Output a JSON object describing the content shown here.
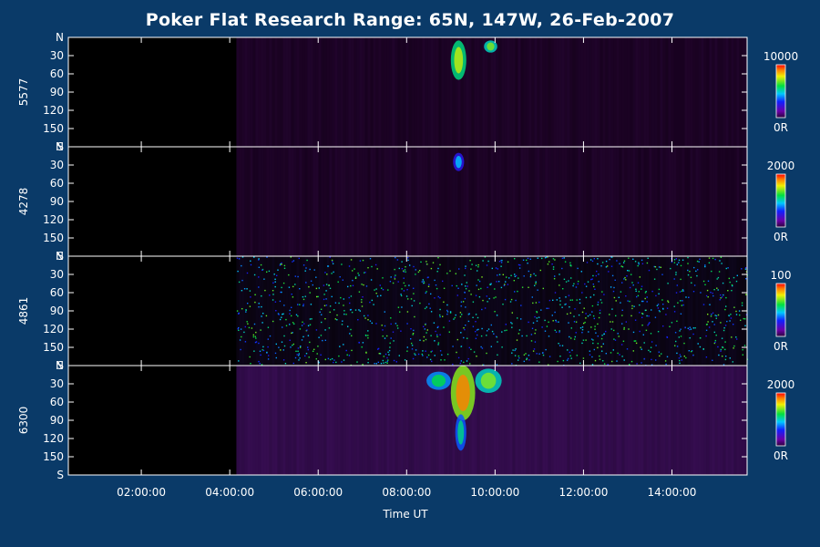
{
  "chart_data": {
    "type": "heatmap",
    "title": "Poker Flat Research Range: 65N, 147W, 26-Feb-2007",
    "xlabel": "Time UT",
    "x_ticks": [
      "02:00:00",
      "04:00:00",
      "06:00:00",
      "08:00:00",
      "10:00:00",
      "12:00:00",
      "14:00:00"
    ],
    "x_tick_hours": [
      2,
      4,
      6,
      8,
      10,
      12,
      14
    ],
    "x_range_hours": [
      0.35,
      15.7
    ],
    "y_ticks": [
      "N",
      "30",
      "60",
      "90",
      "120",
      "150",
      "S"
    ],
    "y_tick_values": [
      0,
      30,
      60,
      90,
      120,
      150,
      180
    ],
    "y_range": [
      0,
      180
    ],
    "data_start_hour": 4.15,
    "panels": [
      {
        "wavelength": "5577",
        "colorbar_max": "10000",
        "colorbar_min": "0R",
        "features": [
          {
            "t0": 9.0,
            "t1": 9.35,
            "y0": 5,
            "y1": 70,
            "level": 0.55
          },
          {
            "t0": 9.75,
            "t1": 10.05,
            "y0": 5,
            "y1": 25,
            "level": 0.5
          }
        ]
      },
      {
        "wavelength": "4278",
        "colorbar_max": "2000",
        "colorbar_min": "0R",
        "features": [
          {
            "t0": 9.05,
            "t1": 9.3,
            "y0": 10,
            "y1": 40,
            "level": 0.25
          }
        ]
      },
      {
        "wavelength": "4861",
        "colorbar_max": "100",
        "colorbar_min": "0R",
        "features": []
      },
      {
        "wavelength": "6300",
        "colorbar_max": "2000",
        "colorbar_min": "0R",
        "features": [
          {
            "t0": 9.0,
            "t1": 9.55,
            "y0": 0,
            "y1": 90,
            "level": 0.7
          },
          {
            "t0": 9.55,
            "t1": 10.15,
            "y0": 5,
            "y1": 45,
            "level": 0.5
          },
          {
            "t0": 8.45,
            "t1": 9.0,
            "y0": 10,
            "y1": 40,
            "level": 0.4
          },
          {
            "t0": 9.1,
            "t1": 9.35,
            "y0": 80,
            "y1": 140,
            "level": 0.35
          }
        ]
      }
    ]
  }
}
